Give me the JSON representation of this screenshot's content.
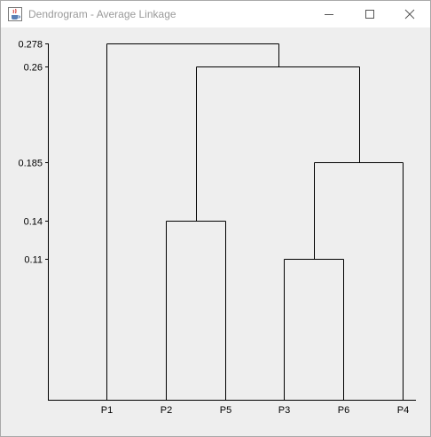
{
  "window": {
    "title": "Dendrogram - Average Linkage",
    "icons": {
      "app": "java-cup-icon",
      "minimize": "minimize-icon",
      "maximize": "maximize-icon",
      "close": "close-icon"
    }
  },
  "chart_data": {
    "type": "dendrogram",
    "title": "Average Linkage",
    "leaves": [
      "P1",
      "P2",
      "P5",
      "P3",
      "P6",
      "P4"
    ],
    "y_ticks": [
      0.278,
      0.26,
      0.185,
      0.14,
      0.11
    ],
    "ylim": [
      0,
      0.278
    ],
    "merges": [
      {
        "left": "P3",
        "right": "P6",
        "height": 0.11
      },
      {
        "left": "P2",
        "right": "P5",
        "height": 0.14
      },
      {
        "left": "P3,P6",
        "right": "P4",
        "height": 0.185
      },
      {
        "left": "P2,P5",
        "right": "P3,P6,P4",
        "height": 0.26
      },
      {
        "left": "P1",
        "right": "P2,P5,P3,P6,P4",
        "height": 0.278
      }
    ],
    "line_color": "#000000",
    "background": "#eeeeee"
  }
}
